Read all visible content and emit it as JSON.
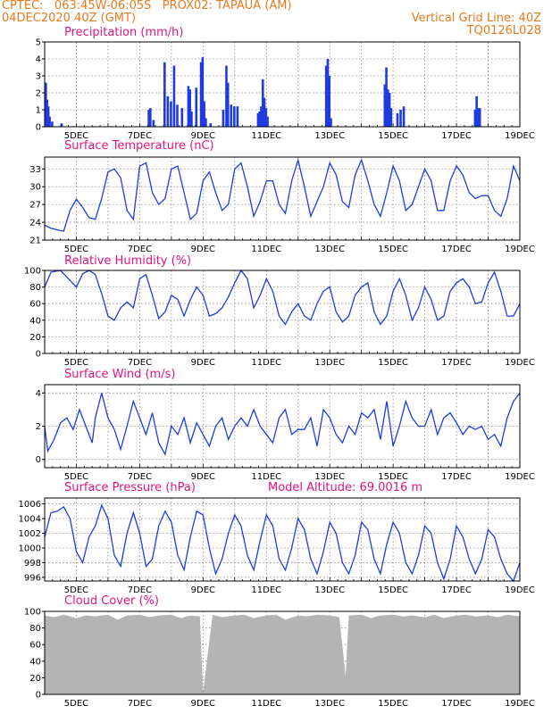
{
  "header": {
    "line1_left": "CPTEC:   063:45W-06:05S   PROX02: TAPAUA (AM)",
    "line2_left": "04DEC2020 40Z (GMT)",
    "line1_right": "Vertical Grid Line: 40Z",
    "line2_right": "TQ0126L028"
  },
  "colors": {
    "header": "#e87a1e",
    "title": "#e0147d",
    "series": "#1f3be0",
    "cloud": "#b4b4b4"
  },
  "chart_data": [
    {
      "type": "bar",
      "title": "Precipitation (mm/h)",
      "x_tick_labels": [
        "5DEC",
        "7DEC",
        "9DEC",
        "11DEC",
        "13DEC",
        "15DEC",
        "17DEC",
        "19DEC"
      ],
      "xlim_days": [
        4,
        19
      ],
      "ylim": [
        0,
        5
      ],
      "y_ticks": [
        0,
        1,
        2,
        3,
        4,
        5
      ],
      "grid": true,
      "bars": [
        [
          4.0,
          2.6
        ],
        [
          4.04,
          1.6
        ],
        [
          4.08,
          1.2
        ],
        [
          4.12,
          0.6
        ],
        [
          4.2,
          0.3
        ],
        [
          4.5,
          0.2
        ],
        [
          7.25,
          1.0
        ],
        [
          7.3,
          1.1
        ],
        [
          7.4,
          0.4
        ],
        [
          7.75,
          3.8
        ],
        [
          7.85,
          1.8
        ],
        [
          7.95,
          1.5
        ],
        [
          8.05,
          3.6
        ],
        [
          8.15,
          1.3
        ],
        [
          8.3,
          1.1
        ],
        [
          8.5,
          2.4
        ],
        [
          8.55,
          2.2
        ],
        [
          8.6,
          0.9
        ],
        [
          8.75,
          2.3
        ],
        [
          8.9,
          3.8
        ],
        [
          8.95,
          4.1
        ],
        [
          9.0,
          1.5
        ],
        [
          9.05,
          0.5
        ],
        [
          9.2,
          0.2
        ],
        [
          9.6,
          1.0
        ],
        [
          9.7,
          3.6
        ],
        [
          9.75,
          2.6
        ],
        [
          9.85,
          1.3
        ],
        [
          9.95,
          1.2
        ],
        [
          10.05,
          1.2
        ],
        [
          10.7,
          0.8
        ],
        [
          10.75,
          0.9
        ],
        [
          10.8,
          1.2
        ],
        [
          10.85,
          2.8
        ],
        [
          10.9,
          1.7
        ],
        [
          10.95,
          1.1
        ],
        [
          11.0,
          0.6
        ],
        [
          12.85,
          3.6
        ],
        [
          12.9,
          4.0
        ],
        [
          12.95,
          3.0
        ],
        [
          13.0,
          0.5
        ],
        [
          14.7,
          2.5
        ],
        [
          14.75,
          3.5
        ],
        [
          14.8,
          2.2
        ],
        [
          14.85,
          2.0
        ],
        [
          14.9,
          1.1
        ],
        [
          15.1,
          0.8
        ],
        [
          15.2,
          1.0
        ],
        [
          15.3,
          1.2
        ],
        [
          17.55,
          1.0
        ],
        [
          17.6,
          1.8
        ],
        [
          17.65,
          1.1
        ],
        [
          17.7,
          1.1
        ]
      ]
    },
    {
      "type": "line",
      "title": "Surface Temperature (nC)",
      "x_tick_labels": [
        "5DEC",
        "7DEC",
        "9DEC",
        "11DEC",
        "13DEC",
        "15DEC",
        "17DEC",
        "19DEC"
      ],
      "xlim_days": [
        4,
        19
      ],
      "ylim": [
        21,
        35
      ],
      "y_ticks": [
        21,
        24,
        27,
        30,
        33
      ],
      "grid": true,
      "x": [
        4.0,
        4.2,
        4.5,
        4.6,
        4.8,
        5.0,
        5.2,
        5.4,
        5.6,
        5.8,
        6.0,
        6.2,
        6.4,
        6.6,
        6.8,
        7.0,
        7.2,
        7.4,
        7.6,
        7.8,
        8.0,
        8.2,
        8.4,
        8.6,
        8.8,
        9.0,
        9.2,
        9.4,
        9.6,
        9.8,
        10.0,
        10.2,
        10.4,
        10.6,
        10.8,
        11.0,
        11.2,
        11.4,
        11.6,
        11.8,
        12.0,
        12.2,
        12.4,
        12.6,
        12.8,
        13.0,
        13.2,
        13.4,
        13.6,
        13.8,
        14.0,
        14.2,
        14.4,
        14.6,
        14.8,
        15.0,
        15.2,
        15.4,
        15.6,
        15.8,
        16.0,
        16.2,
        16.4,
        16.6,
        16.8,
        17.0,
        17.2,
        17.4,
        17.6,
        17.8,
        18.0,
        18.2,
        18.4,
        18.6,
        18.8,
        19.0
      ],
      "y": [
        23.5,
        23.0,
        22.6,
        22.5,
        26.0,
        27.9,
        26.5,
        24.8,
        24.5,
        28.0,
        32.5,
        33.0,
        31.5,
        26.0,
        24.5,
        33.5,
        34.0,
        29.0,
        27.0,
        28.0,
        33.0,
        33.5,
        29.0,
        24.5,
        25.5,
        31.0,
        32.5,
        29.0,
        26.0,
        27.0,
        33.0,
        34.0,
        30.0,
        25.0,
        27.5,
        31.0,
        31.0,
        27.0,
        25.5,
        31.0,
        34.5,
        30.0,
        25.0,
        27.5,
        30.0,
        34.0,
        32.0,
        27.5,
        26.5,
        32.0,
        34.5,
        31.0,
        27.0,
        25.0,
        29.0,
        33.5,
        31.0,
        26.0,
        27.0,
        30.0,
        33.0,
        31.0,
        26.0,
        26.0,
        31.0,
        33.5,
        32.0,
        29.0,
        28.0,
        28.5,
        28.5,
        26.0,
        25.0,
        28.0,
        33.5,
        31.0
      ]
    },
    {
      "type": "line",
      "title": "Relative Humidity (%)",
      "x_tick_labels": [
        "5DEC",
        "7DEC",
        "9DEC",
        "11DEC",
        "13DEC",
        "15DEC",
        "17DEC",
        "19DEC"
      ],
      "xlim_days": [
        4,
        19
      ],
      "ylim": [
        0,
        100
      ],
      "y_ticks": [
        0,
        20,
        40,
        60,
        80,
        100
      ],
      "grid": true,
      "x": [
        4.0,
        4.2,
        4.5,
        4.7,
        5.0,
        5.2,
        5.4,
        5.6,
        5.8,
        6.0,
        6.2,
        6.4,
        6.6,
        6.8,
        7.0,
        7.2,
        7.4,
        7.6,
        7.8,
        8.0,
        8.2,
        8.4,
        8.6,
        8.8,
        9.0,
        9.2,
        9.4,
        9.6,
        9.8,
        10.0,
        10.2,
        10.4,
        10.6,
        10.8,
        11.0,
        11.2,
        11.4,
        11.6,
        11.8,
        12.0,
        12.2,
        12.4,
        12.6,
        12.8,
        13.0,
        13.2,
        13.4,
        13.6,
        13.8,
        14.0,
        14.2,
        14.4,
        14.6,
        14.8,
        15.0,
        15.2,
        15.4,
        15.6,
        15.8,
        16.0,
        16.2,
        16.4,
        16.6,
        16.8,
        17.0,
        17.2,
        17.4,
        17.6,
        17.8,
        18.0,
        18.2,
        18.4,
        18.6,
        18.8,
        19.0
      ],
      "y": [
        80,
        98,
        100,
        92,
        80,
        96,
        100,
        95,
        72,
        45,
        40,
        55,
        62,
        55,
        90,
        95,
        70,
        42,
        50,
        70,
        65,
        45,
        65,
        80,
        70,
        45,
        48,
        55,
        68,
        85,
        100,
        90,
        55,
        70,
        90,
        75,
        45,
        35,
        50,
        60,
        45,
        40,
        60,
        75,
        80,
        50,
        38,
        45,
        70,
        80,
        85,
        50,
        35,
        45,
        75,
        90,
        70,
        40,
        55,
        80,
        65,
        40,
        45,
        75,
        85,
        90,
        80,
        60,
        62,
        85,
        98,
        75,
        45,
        45,
        60
      ]
    },
    {
      "type": "line",
      "title": "Surface Wind (m/s)",
      "x_tick_labels": [
        "5DEC",
        "7DEC",
        "9DEC",
        "11DEC",
        "13DEC",
        "15DEC",
        "17DEC",
        "19DEC"
      ],
      "xlim_days": [
        4,
        19
      ],
      "ylim": [
        -0.5,
        4.5
      ],
      "y_ticks": [
        0,
        2,
        4
      ],
      "grid": true,
      "x": [
        4.0,
        4.1,
        4.3,
        4.5,
        4.7,
        4.9,
        5.1,
        5.3,
        5.5,
        5.6,
        5.8,
        6.0,
        6.2,
        6.4,
        6.6,
        6.8,
        7.0,
        7.2,
        7.4,
        7.6,
        7.8,
        8.0,
        8.2,
        8.4,
        8.6,
        8.8,
        9.0,
        9.2,
        9.4,
        9.6,
        9.8,
        10.0,
        10.2,
        10.4,
        10.6,
        10.8,
        11.0,
        11.2,
        11.4,
        11.6,
        11.8,
        12.0,
        12.2,
        12.4,
        12.6,
        12.8,
        13.0,
        13.2,
        13.4,
        13.6,
        13.8,
        14.0,
        14.2,
        14.4,
        14.6,
        14.8,
        15.0,
        15.2,
        15.4,
        15.6,
        15.8,
        16.0,
        16.2,
        16.4,
        16.6,
        16.8,
        17.0,
        17.2,
        17.4,
        17.6,
        17.8,
        18.0,
        18.2,
        18.4,
        18.6,
        18.8,
        19.0
      ],
      "y": [
        2.0,
        0.5,
        1.2,
        2.2,
        2.5,
        1.8,
        3.0,
        2.0,
        1.0,
        2.5,
        4.0,
        2.5,
        1.8,
        0.6,
        2.0,
        3.5,
        2.5,
        1.5,
        2.8,
        1.0,
        0.3,
        2.0,
        1.5,
        2.5,
        1.0,
        2.2,
        1.5,
        0.8,
        2.0,
        2.5,
        1.2,
        2.0,
        2.5,
        2.0,
        3.0,
        2.0,
        1.5,
        1.0,
        2.5,
        3.0,
        1.5,
        1.8,
        1.8,
        2.5,
        0.8,
        3.0,
        2.5,
        1.5,
        1.0,
        2.0,
        1.5,
        2.8,
        2.5,
        3.0,
        1.2,
        3.5,
        0.8,
        2.0,
        3.5,
        2.5,
        2.0,
        2.0,
        3.0,
        1.5,
        2.5,
        2.8,
        2.2,
        1.5,
        2.0,
        1.8,
        2.0,
        1.2,
        1.5,
        0.8,
        2.5,
        3.5,
        4.0
      ]
    },
    {
      "type": "line",
      "title": "Surface Pressure (hPa)",
      "annotation": "Model Altitude: 69.0016 m",
      "x_tick_labels": [
        "5DEC",
        "7DEC",
        "9DEC",
        "11DEC",
        "13DEC",
        "15DEC",
        "17DEC",
        "19DEC"
      ],
      "xlim_days": [
        4,
        19
      ],
      "ylim": [
        995.5,
        1006.8
      ],
      "y_ticks": [
        996,
        998,
        1000,
        1002,
        1004,
        1006
      ],
      "grid": true,
      "x": [
        4.0,
        4.2,
        4.4,
        4.6,
        4.8,
        5.0,
        5.2,
        5.4,
        5.6,
        5.8,
        6.0,
        6.2,
        6.4,
        6.6,
        6.8,
        7.0,
        7.2,
        7.4,
        7.6,
        7.8,
        8.0,
        8.2,
        8.4,
        8.6,
        8.8,
        9.0,
        9.2,
        9.4,
        9.6,
        9.8,
        10.0,
        10.2,
        10.4,
        10.6,
        10.8,
        11.0,
        11.2,
        11.4,
        11.6,
        11.8,
        12.0,
        12.2,
        12.4,
        12.6,
        12.8,
        13.0,
        13.2,
        13.4,
        13.6,
        13.8,
        14.0,
        14.2,
        14.4,
        14.6,
        14.8,
        15.0,
        15.2,
        15.4,
        15.6,
        15.8,
        16.0,
        16.2,
        16.4,
        16.6,
        16.8,
        17.0,
        17.2,
        17.4,
        17.6,
        17.8,
        18.0,
        18.2,
        18.4,
        18.6,
        18.8,
        19.0
      ],
      "y": [
        1001.5,
        1004.8,
        1005.0,
        1005.6,
        1004.0,
        999.5,
        998.0,
        1001.5,
        1003.0,
        1005.8,
        1004.0,
        999.0,
        997.5,
        1002.0,
        1004.8,
        1002.0,
        997.5,
        998.5,
        1003.0,
        1005.0,
        1003.5,
        999.0,
        997.0,
        1001.5,
        1005.0,
        1004.5,
        1000.0,
        996.5,
        998.5,
        1002.0,
        1004.5,
        1003.0,
        999.0,
        997.0,
        1001.0,
        1004.5,
        1003.0,
        998.5,
        997.0,
        1000.0,
        1004.0,
        1002.5,
        998.5,
        996.5,
        999.5,
        1003.5,
        1002.0,
        998.0,
        996.5,
        999.0,
        1003.5,
        1002.5,
        998.5,
        996.5,
        1000.5,
        1003.5,
        1002.0,
        998.0,
        996.5,
        999.0,
        1003.0,
        1002.0,
        998.0,
        995.8,
        998.5,
        1003.0,
        1001.5,
        998.5,
        996.5,
        998.5,
        1002.5,
        1001.5,
        998.5,
        996.5,
        995.5,
        998.0
      ]
    },
    {
      "type": "area",
      "title": "Cloud Cover (%)",
      "x_tick_labels": [
        "5DEC",
        "7DEC",
        "9DEC",
        "11DEC",
        "13DEC",
        "15DEC",
        "17DEC",
        "19DEC"
      ],
      "xlim_days": [
        4,
        19
      ],
      "ylim": [
        0,
        100
      ],
      "y_ticks": [
        0,
        20,
        40,
        60,
        80,
        100
      ],
      "grid": true,
      "x": [
        4.0,
        4.3,
        4.6,
        5.0,
        5.3,
        5.6,
        6.0,
        6.3,
        6.6,
        7.0,
        7.3,
        7.6,
        8.0,
        8.3,
        8.6,
        8.9,
        9.0,
        9.3,
        9.6,
        10.0,
        10.3,
        10.6,
        11.0,
        11.3,
        11.6,
        12.0,
        12.3,
        12.6,
        13.0,
        13.3,
        13.5,
        13.6,
        14.0,
        14.3,
        14.6,
        15.0,
        15.3,
        15.6,
        16.0,
        16.3,
        16.6,
        17.0,
        17.3,
        17.6,
        18.0,
        18.3,
        18.6,
        19.0
      ],
      "y": [
        95,
        93,
        96,
        92,
        95,
        94,
        96,
        90,
        95,
        96,
        93,
        95,
        96,
        92,
        95,
        94,
        2,
        96,
        93,
        95,
        96,
        92,
        95,
        96,
        90,
        95,
        94,
        96,
        95,
        93,
        22,
        95,
        96,
        92,
        95,
        96,
        94,
        95,
        93,
        96,
        92,
        95,
        96,
        94,
        95,
        93,
        96,
        94
      ]
    }
  ]
}
